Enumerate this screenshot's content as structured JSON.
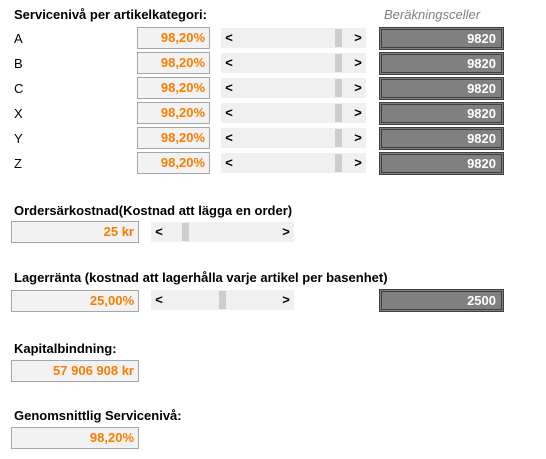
{
  "service_section": {
    "title": "Servicenivå per artikelkategori:",
    "calc_header": "Beräkningsceller",
    "categories": [
      {
        "label": "A",
        "value": "98,20%",
        "calc": "9820",
        "level": 0.982
      },
      {
        "label": "B",
        "value": "98,20%",
        "calc": "9820",
        "level": 0.982
      },
      {
        "label": "C",
        "value": "98,20%",
        "calc": "9820",
        "level": 0.982
      },
      {
        "label": "X",
        "value": "98,20%",
        "calc": "9820",
        "level": 0.982
      },
      {
        "label": "Y",
        "value": "98,20%",
        "calc": "9820",
        "level": 0.982
      },
      {
        "label": "Z",
        "value": "98,20%",
        "calc": "9820",
        "level": 0.982
      }
    ]
  },
  "order_cost": {
    "title": "Ordersärkostnad(Kostnad att lägga en order)",
    "value": "25 kr",
    "level": 0.1
  },
  "interest": {
    "title": "Lagerränta (kostnad att lagerhålla varje artikel per basenhet)",
    "value": "25,00%",
    "calc": "2500",
    "level": 0.5
  },
  "capital": {
    "title": "Kapitalbindning:",
    "value": "57 906 908 kr"
  },
  "avg_service": {
    "title": "Genomsnittlig Servicenivå:",
    "value": "98,20%"
  },
  "icons": {
    "left": "<",
    "right": ">"
  },
  "colors": {
    "value_text": "#fa7d00",
    "calc_bg": "#808080",
    "calc_text": "#ffffff"
  }
}
